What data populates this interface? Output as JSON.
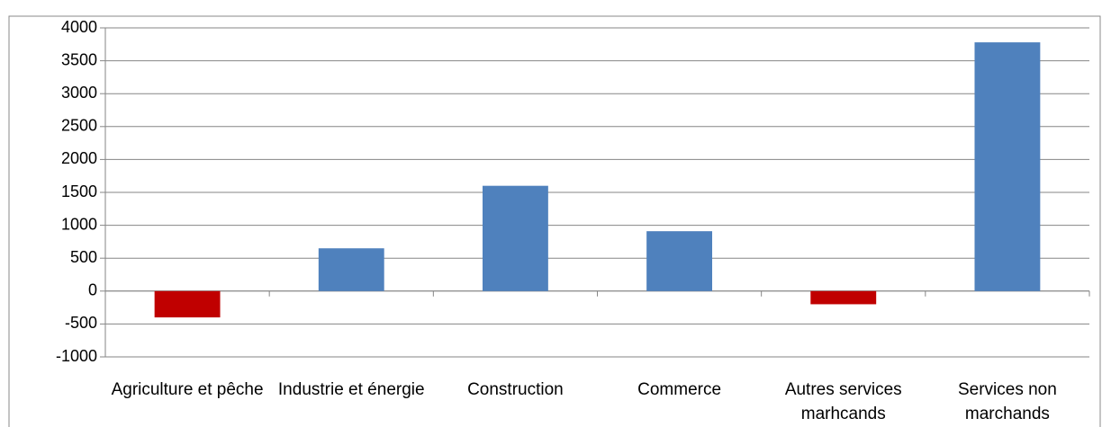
{
  "chart_data": {
    "type": "bar",
    "categories": [
      "Agriculture et pêche",
      "Industrie et énergie",
      "Construction",
      "Commerce",
      "Autres services marhcands",
      "Services non marchands"
    ],
    "values": [
      -400,
      650,
      1600,
      910,
      -200,
      3780
    ],
    "colors": [
      "#c00000",
      "#4f81bd",
      "#4f81bd",
      "#4f81bd",
      "#c00000",
      "#4f81bd"
    ],
    "ylim": [
      -1000,
      4000
    ],
    "yticks": [
      -1000,
      -500,
      0,
      500,
      1000,
      1500,
      2000,
      2500,
      3000,
      3500,
      4000
    ],
    "grid": true
  }
}
